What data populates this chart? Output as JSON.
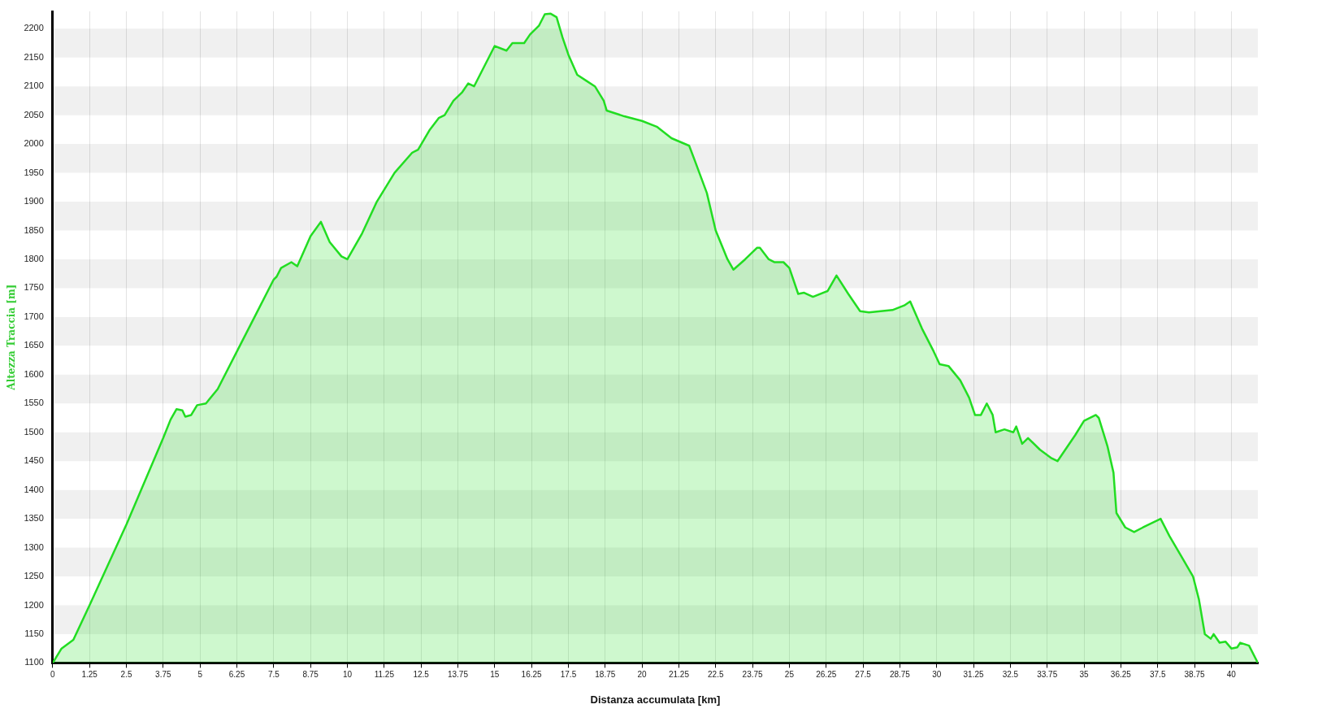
{
  "chart_data": {
    "type": "area",
    "xlabel": "Distanza accumulata [km]",
    "ylabel": "Altezza Traccia [m]",
    "grid": true,
    "legend": false,
    "marker": "none",
    "line_style": "solid",
    "xlim": [
      0,
      40.9
    ],
    "ylim": [
      1100,
      2230
    ],
    "xticks": [
      0,
      1.25,
      2.5,
      3.75,
      5,
      6.25,
      7.5,
      8.75,
      10,
      11.25,
      12.5,
      13.75,
      15,
      16.25,
      17.5,
      18.75,
      20,
      21.25,
      22.5,
      23.75,
      25,
      26.25,
      27.5,
      28.75,
      30,
      31.25,
      32.5,
      33.75,
      35,
      36.25,
      37.5,
      38.75,
      40
    ],
    "yticks": [
      1100,
      1150,
      1200,
      1250,
      1300,
      1350,
      1400,
      1450,
      1500,
      1550,
      1600,
      1650,
      1700,
      1750,
      1800,
      1850,
      1900,
      1950,
      2000,
      2050,
      2100,
      2150,
      2200
    ],
    "series": [
      {
        "color": "#22dd22",
        "x": [
          0,
          0.3,
          0.7,
          1.25,
          2.5,
          3.75,
          4.0,
          4.2,
          4.4,
          4.5,
          4.7,
          4.9,
          5.2,
          5.6,
          6.25,
          6.9,
          7.5,
          7.6,
          7.75,
          8.1,
          8.3,
          8.75,
          9.1,
          9.4,
          9.8,
          10.0,
          10.5,
          11.0,
          11.6,
          12.2,
          12.4,
          12.8,
          13.1,
          13.3,
          13.6,
          13.9,
          14.1,
          14.3,
          15.0,
          15.4,
          15.6,
          16.0,
          16.2,
          16.5,
          16.7,
          16.9,
          17.1,
          17.3,
          17.5,
          17.8,
          18.1,
          18.4,
          18.7,
          18.8,
          19.4,
          20.0,
          20.5,
          21.0,
          21.6,
          21.8,
          22.2,
          22.5,
          22.9,
          23.1,
          23.5,
          23.9,
          24.0,
          24.3,
          24.5,
          24.8,
          25.0,
          25.3,
          25.5,
          25.8,
          26.3,
          26.6,
          27.0,
          27.4,
          27.7,
          28.5,
          28.9,
          29.1,
          29.5,
          29.9,
          30.1,
          30.4,
          30.8,
          31.1,
          31.3,
          31.5,
          31.7,
          31.9,
          32.0,
          32.3,
          32.6,
          32.7,
          32.9,
          33.1,
          33.5,
          33.9,
          34.1,
          34.7,
          35.0,
          35.4,
          35.5,
          35.8,
          36.0,
          36.1,
          36.4,
          36.7,
          37.0,
          37.6,
          37.9,
          38.3,
          38.7,
          38.9,
          39.1,
          39.3,
          39.4,
          39.6,
          39.8,
          40.0,
          40.2,
          40.3,
          40.6,
          40.9
        ],
        "values": [
          1100,
          1125,
          1140,
          1200,
          1340,
          1490,
          1522,
          1540,
          1538,
          1527,
          1530,
          1547,
          1550,
          1575,
          1640,
          1705,
          1765,
          1770,
          1785,
          1795,
          1788,
          1840,
          1865,
          1830,
          1805,
          1800,
          1845,
          1900,
          1950,
          1985,
          1990,
          2025,
          2045,
          2050,
          2075,
          2090,
          2105,
          2100,
          2170,
          2162,
          2175,
          2175,
          2190,
          2205,
          2225,
          2226,
          2220,
          2185,
          2155,
          2120,
          2110,
          2100,
          2075,
          2058,
          2048,
          2040,
          2030,
          2010,
          1997,
          1970,
          1915,
          1850,
          1800,
          1782,
          1800,
          1820,
          1820,
          1800,
          1795,
          1795,
          1785,
          1740,
          1742,
          1735,
          1745,
          1772,
          1740,
          1710,
          1708,
          1712,
          1720,
          1727,
          1680,
          1640,
          1618,
          1615,
          1590,
          1560,
          1530,
          1530,
          1550,
          1530,
          1500,
          1505,
          1500,
          1510,
          1480,
          1490,
          1470,
          1455,
          1450,
          1495,
          1520,
          1530,
          1525,
          1475,
          1430,
          1360,
          1335,
          1327,
          1335,
          1350,
          1320,
          1285,
          1250,
          1210,
          1150,
          1142,
          1150,
          1135,
          1137,
          1125,
          1127,
          1135,
          1130,
          1100
        ]
      }
    ]
  }
}
